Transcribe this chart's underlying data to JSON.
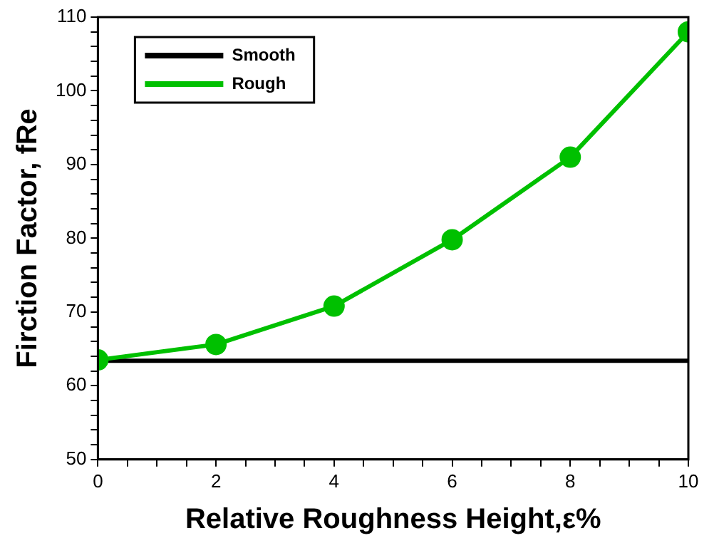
{
  "chart_data": {
    "type": "line",
    "xlabel": "Relative Roughness Height,ε%",
    "ylabel": "Firction Factor, fRe",
    "x": [
      0,
      2,
      4,
      6,
      8,
      10
    ],
    "series": [
      {
        "name": "Smooth",
        "color": "#000000",
        "values": [
          63.4,
          63.4,
          63.4,
          63.4,
          63.4,
          63.4
        ],
        "marker": "none"
      },
      {
        "name": "Rough",
        "color": "#00c000",
        "values": [
          63.5,
          65.6,
          70.8,
          79.8,
          91.0,
          108.0
        ],
        "marker": "circle"
      }
    ],
    "xlim": [
      0,
      10
    ],
    "xticks": [
      0,
      {
        "value": 0.5,
        "label": null
      },
      {
        "value": 1,
        "label": null
      },
      {
        "value": 1.5,
        "label": null
      },
      2,
      {
        "value": 2.5,
        "label": null
      },
      {
        "value": 3,
        "label": null
      },
      {
        "value": 3.5,
        "label": null
      },
      4,
      {
        "value": 4.5,
        "label": null
      },
      {
        "value": 5,
        "label": null
      },
      {
        "value": 5.5,
        "label": null
      },
      6,
      {
        "value": 6.5,
        "label": null
      },
      {
        "value": 7,
        "label": null
      },
      {
        "value": 7.5,
        "label": null
      },
      8,
      {
        "value": 8.5,
        "label": null
      },
      {
        "value": 9,
        "label": null
      },
      {
        "value": 9.5,
        "label": null
      },
      10
    ],
    "ylim": [
      50,
      110
    ],
    "yticks": [
      50,
      {
        "value": 52,
        "label": null
      },
      {
        "value": 54,
        "label": null
      },
      {
        "value": 56,
        "label": null
      },
      {
        "value": 58,
        "label": null
      },
      60,
      {
        "value": 62,
        "label": null
      },
      {
        "value": 64,
        "label": null
      },
      {
        "value": 66,
        "label": null
      },
      {
        "value": 68,
        "label": null
      },
      70,
      {
        "value": 72,
        "label": null
      },
      {
        "value": 74,
        "label": null
      },
      {
        "value": 76,
        "label": null
      },
      {
        "value": 78,
        "label": null
      },
      80,
      {
        "value": 82,
        "label": null
      },
      {
        "value": 84,
        "label": null
      },
      {
        "value": 86,
        "label": null
      },
      {
        "value": 88,
        "label": null
      },
      90,
      {
        "value": 92,
        "label": null
      },
      {
        "value": 94,
        "label": null
      },
      {
        "value": 96,
        "label": null
      },
      {
        "value": 98,
        "label": null
      },
      100,
      {
        "value": 102,
        "label": null
      },
      {
        "value": 104,
        "label": null
      },
      {
        "value": 106,
        "label": null
      },
      {
        "value": 108,
        "label": null
      },
      110
    ],
    "grid": false,
    "legend": "top left",
    "line_style": "solid"
  }
}
